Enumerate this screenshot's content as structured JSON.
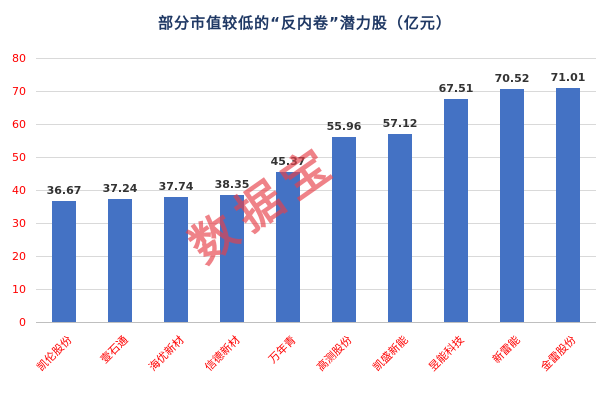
{
  "title": "部分市值较低的“反内卷”潜力股（亿元）",
  "watermark": "数据宝",
  "colors": {
    "bar": "#4472C4",
    "axis_label": "#FF0000",
    "value_label": "#333333",
    "title": "#1F3864",
    "watermark": "#E8404A",
    "gridline": "#D9D9D9"
  },
  "chart_data": {
    "type": "bar",
    "title": "部分市值较低的“反内卷”潜力股（亿元）",
    "categories": [
      "凯伦股份",
      "壹石通",
      "海优新材",
      "信德新材",
      "万年青",
      "高测股份",
      "凯盛新能",
      "昱能科技",
      "新雷能",
      "金雷股份"
    ],
    "values": [
      36.67,
      37.24,
      37.74,
      38.35,
      45.37,
      55.96,
      57.12,
      67.51,
      70.52,
      71.01
    ],
    "xlabel": "",
    "ylabel": "",
    "ylim": [
      0,
      80
    ],
    "ytick_interval": 10,
    "grid": true,
    "legend": false,
    "bar_color": "#4472C4"
  }
}
